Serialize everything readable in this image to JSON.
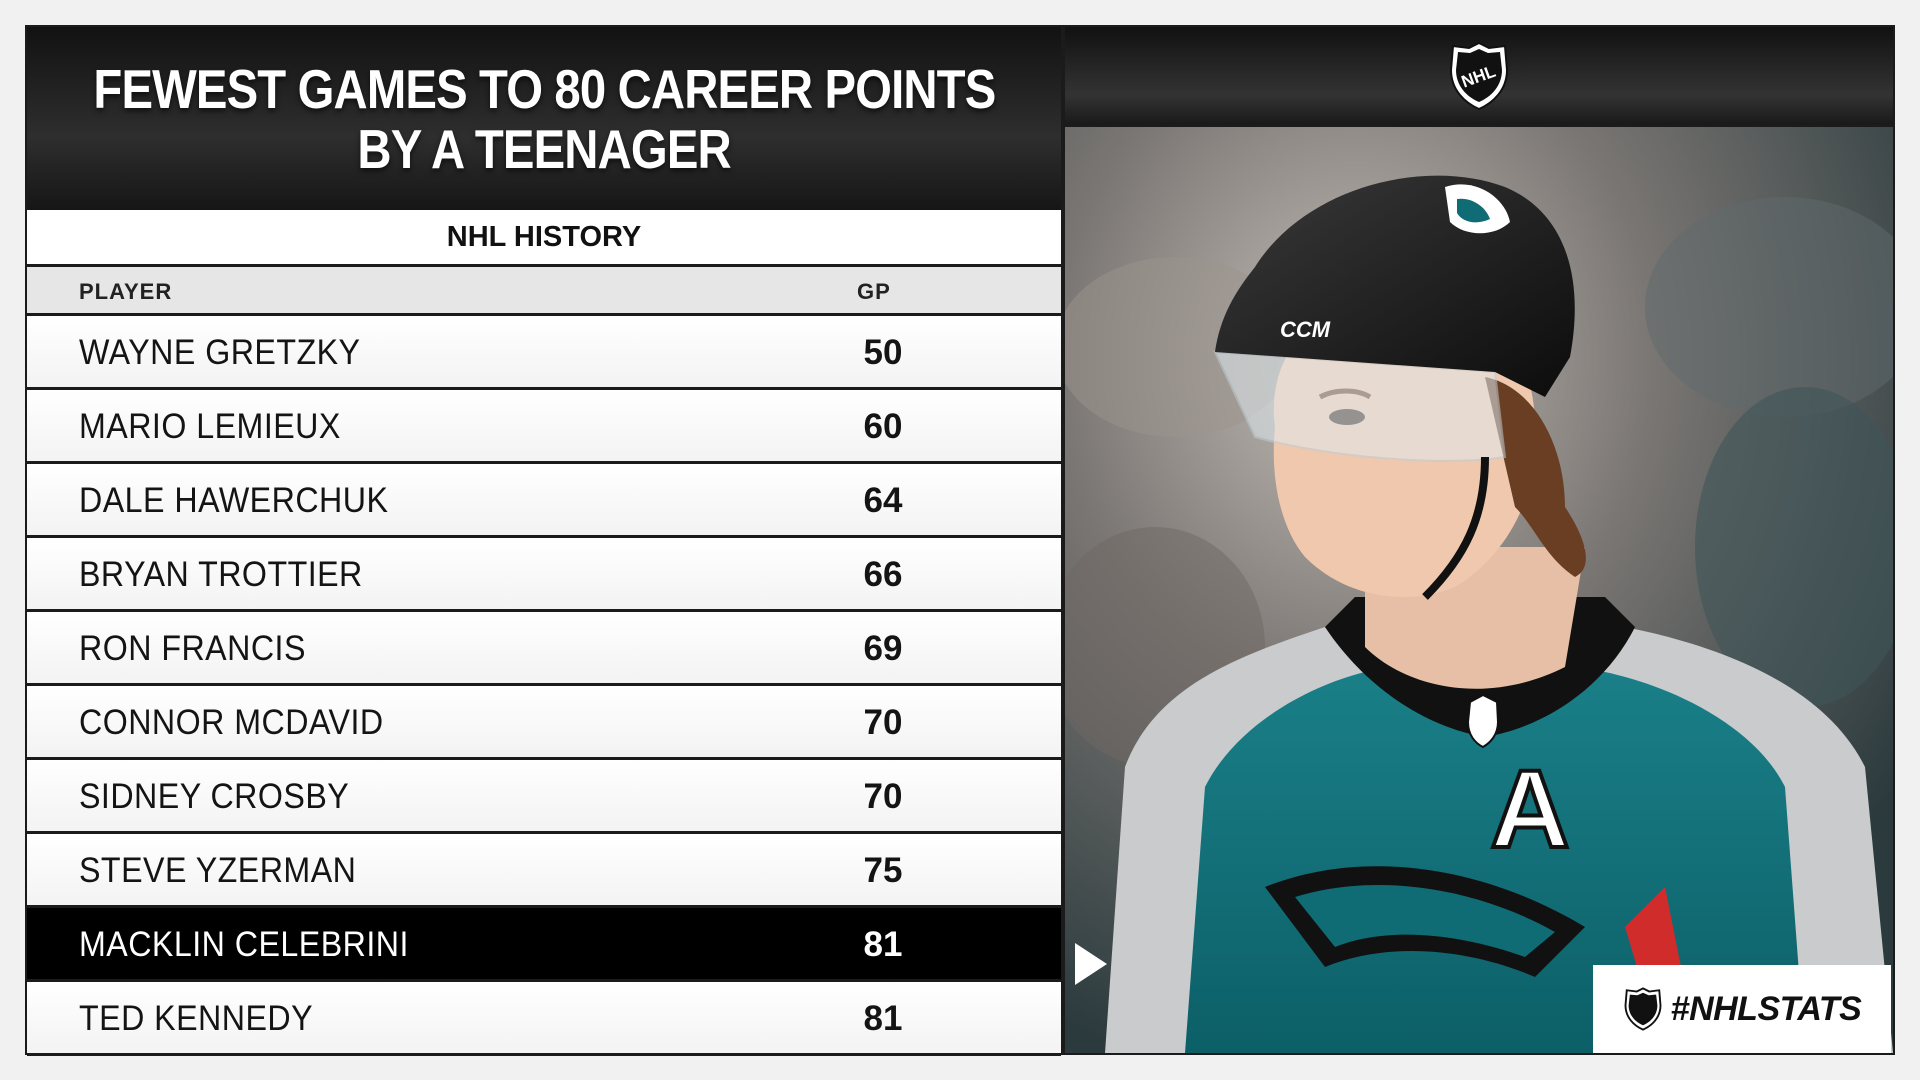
{
  "title": {
    "line1": "FEWEST GAMES TO 80 CAREER POINTS",
    "line2": "BY A TEENAGER"
  },
  "section_label": "NHL HISTORY",
  "columns": {
    "player": "PLAYER",
    "gp": "GP"
  },
  "rows": [
    {
      "player": "WAYNE GRETZKY",
      "gp": "50",
      "highlight": false
    },
    {
      "player": "MARIO LEMIEUX",
      "gp": "60",
      "highlight": false
    },
    {
      "player": "DALE HAWERCHUK",
      "gp": "64",
      "highlight": false
    },
    {
      "player": "BRYAN TROTTIER",
      "gp": "66",
      "highlight": false
    },
    {
      "player": "RON FRANCIS",
      "gp": "69",
      "highlight": false
    },
    {
      "player": "CONNOR MCDAVID",
      "gp": "70",
      "highlight": false
    },
    {
      "player": "SIDNEY CROSBY",
      "gp": "70",
      "highlight": false
    },
    {
      "player": "STEVE YZERMAN",
      "gp": "75",
      "highlight": false
    },
    {
      "player": "MACKLIN CELEBRINI",
      "gp": "81",
      "highlight": true
    },
    {
      "player": "TED KENNEDY",
      "gp": "81",
      "highlight": false
    }
  ],
  "logo": {
    "text": "NHL",
    "icon": "nhl-shield-icon"
  },
  "photo": {
    "helmet_brand": "CCM",
    "letter": "A"
  },
  "hashtag": "#NHLSTATS",
  "colors": {
    "dark": "#1b1b1b",
    "highlight": "#000000",
    "teal": "#0f6b74",
    "row_bg": "#ffffff",
    "header_gray": "#e6e6e6"
  }
}
